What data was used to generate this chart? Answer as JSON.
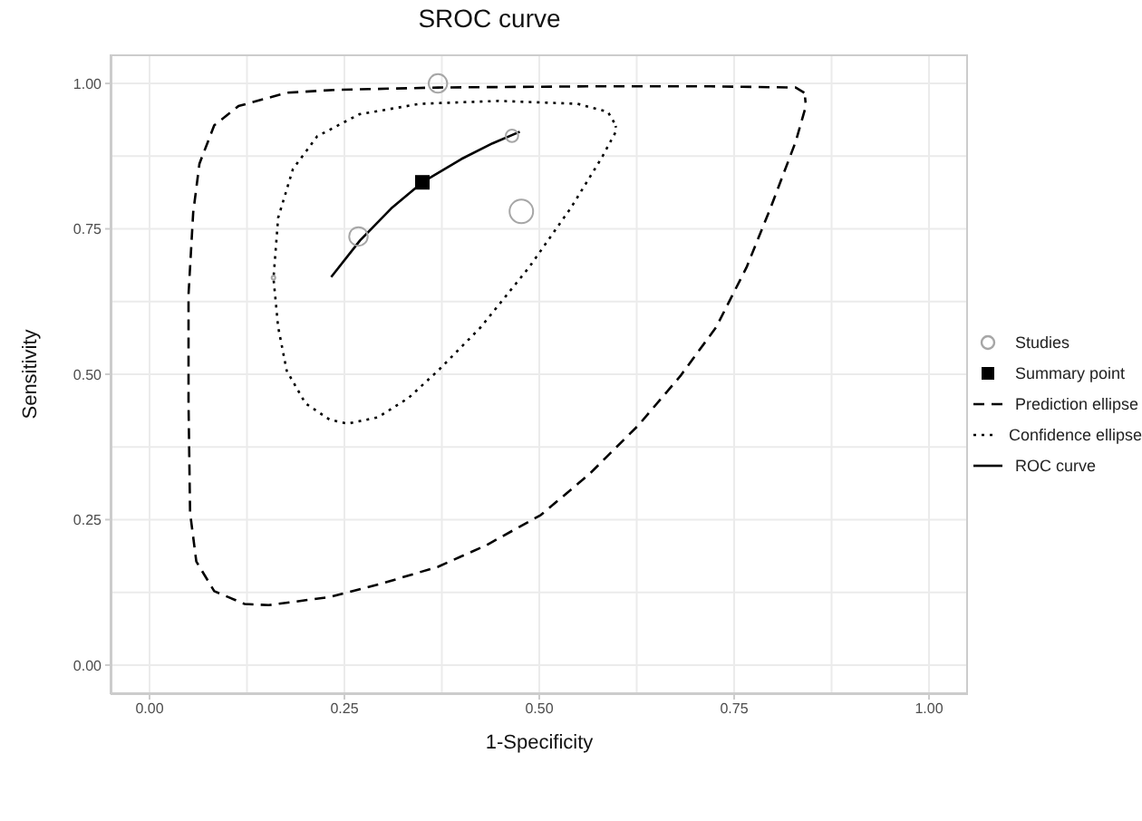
{
  "chart_data": {
    "type": "line",
    "title": "SROC curve",
    "xlabel": "1-Specificity",
    "ylabel": "Sensitivity",
    "xlim": [
      -0.05,
      1.05
    ],
    "ylim": [
      -0.05,
      1.05
    ],
    "xticks": [
      {
        "value": 0,
        "label": "0.00"
      },
      {
        "value": 0.25,
        "label": "0.25"
      },
      {
        "value": 0.5,
        "label": "0.50"
      },
      {
        "value": 0.75,
        "label": "0.75"
      },
      {
        "value": 1,
        "label": "1.00"
      }
    ],
    "yticks": [
      {
        "value": 0,
        "label": "0.00"
      },
      {
        "value": 0.25,
        "label": "0.25"
      },
      {
        "value": 0.5,
        "label": "0.50"
      },
      {
        "value": 0.75,
        "label": "0.75"
      },
      {
        "value": 1,
        "label": "1.00"
      }
    ],
    "grid": true,
    "legend": "right",
    "series": [
      {
        "name": "Studies",
        "type": "bubble",
        "marker": "circle",
        "color": "#a6a6a6",
        "x": [
          0.37,
          0.465,
          0.268,
          0.477,
          0.159
        ],
        "values": [
          1.0,
          0.91,
          0.737,
          0.78,
          0.666
        ],
        "sizes": [
          0.62,
          0.28,
          0.62,
          1,
          0.025
        ]
      },
      {
        "name": "Summary point",
        "type": "scatter",
        "marker": "square",
        "color": "#000000",
        "x": [
          0.35
        ],
        "values": [
          0.83
        ]
      },
      {
        "name": "Prediction ellipse",
        "type": "line",
        "line_style": "dashed",
        "marker": "none",
        "color": "#000000",
        "x": [
          0.84,
          0.829,
          0.72,
          0.564,
          0.37,
          0.238,
          0.176,
          0.114,
          0.083,
          0.064,
          0.056,
          0.05,
          0.05,
          0.052,
          0.06,
          0.083,
          0.122,
          0.153,
          0.231,
          0.3,
          0.37,
          0.432,
          0.502,
          0.564,
          0.627,
          0.681,
          0.727,
          0.766,
          0.797,
          0.829,
          0.842,
          0.841
        ],
        "values": [
          0.984,
          0.993,
          0.995,
          0.995,
          0.993,
          0.989,
          0.984,
          0.961,
          0.928,
          0.862,
          0.778,
          0.637,
          0.45,
          0.262,
          0.178,
          0.127,
          0.105,
          0.103,
          0.117,
          0.141,
          0.169,
          0.206,
          0.258,
          0.328,
          0.412,
          0.497,
          0.581,
          0.684,
          0.787,
          0.9,
          0.961,
          0.976
        ]
      },
      {
        "name": "Confidence ellipse",
        "type": "line",
        "line_style": "dotted",
        "marker": "none",
        "color": "#000000",
        "x": [
          0.596,
          0.588,
          0.549,
          0.448,
          0.347,
          0.269,
          0.215,
          0.184,
          0.165,
          0.159,
          0.165,
          0.176,
          0.2,
          0.231,
          0.254,
          0.293,
          0.332,
          0.37,
          0.425,
          0.487,
          0.541,
          0.58,
          0.599,
          0.598
        ],
        "values": [
          0.933,
          0.951,
          0.965,
          0.97,
          0.965,
          0.947,
          0.909,
          0.853,
          0.769,
          0.665,
          0.581,
          0.506,
          0.45,
          0.422,
          0.415,
          0.426,
          0.459,
          0.506,
          0.581,
          0.684,
          0.787,
          0.872,
          0.919,
          0.927
        ]
      },
      {
        "name": "ROC curve",
        "type": "line",
        "line_style": "solid",
        "marker": "none",
        "color": "#000000",
        "x": [
          0.233,
          0.27,
          0.31,
          0.35,
          0.4,
          0.44,
          0.475
        ],
        "values": [
          0.667,
          0.73,
          0.785,
          0.83,
          0.87,
          0.897,
          0.917
        ]
      }
    ]
  }
}
